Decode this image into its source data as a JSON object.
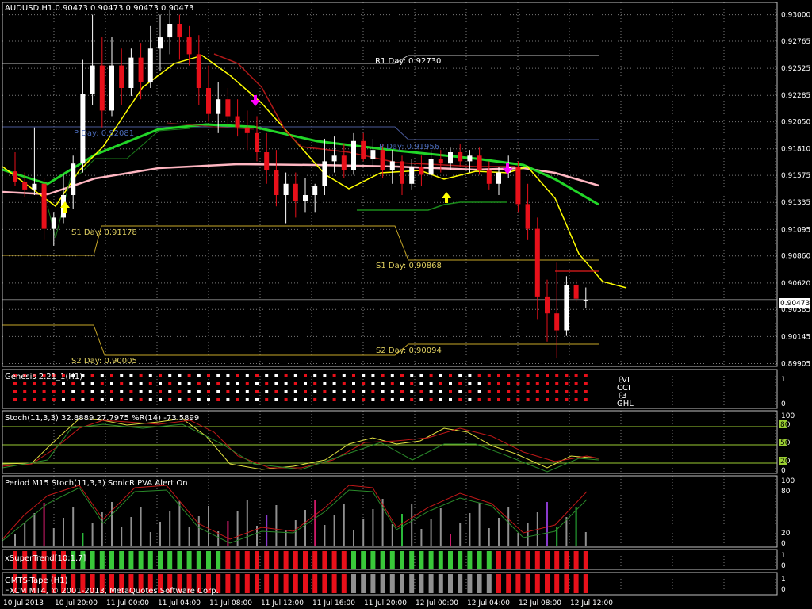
{
  "header": {
    "title": "AUDUSD,H1  0.90473 0.90473 0.90473 0.90473",
    "current_price": "0.90473"
  },
  "chart_data": {
    "type": "candlestick",
    "symbol": "AUDUSD",
    "timeframe": "H1",
    "price_axis": [
      "0.93000",
      "0.92765",
      "0.92525",
      "0.92285",
      "0.92050",
      "0.91810",
      "0.91575",
      "0.91335",
      "0.91095",
      "0.90860",
      "0.90620",
      "0.90385",
      "0.90145",
      "0.89905"
    ],
    "ylim": [
      0.8988,
      0.9311
    ],
    "time_axis": [
      "10 Jul 2013",
      "10 Jul 20:00",
      "11 Jul 00:00",
      "11 Jul 04:00",
      "11 Jul 08:00",
      "11 Jul 12:00",
      "11 Jul 16:00",
      "11 Jul 20:00",
      "12 Jul 00:00",
      "12 Jul 04:00",
      "12 Jul 08:00",
      "12 Jul 12:00"
    ],
    "candles": [
      [
        0.9161,
        0.9178,
        0.9148,
        0.9152
      ],
      [
        0.9152,
        0.916,
        0.9138,
        0.9145
      ],
      [
        0.9145,
        0.92,
        0.914,
        0.915
      ],
      [
        0.915,
        0.9155,
        0.91,
        0.911
      ],
      [
        0.911,
        0.9125,
        0.9095,
        0.912
      ],
      [
        0.912,
        0.9158,
        0.9115,
        0.914
      ],
      [
        0.914,
        0.9175,
        0.9128,
        0.9168
      ],
      [
        0.9168,
        0.926,
        0.916,
        0.923
      ],
      [
        0.923,
        0.93,
        0.922,
        0.9255
      ],
      [
        0.9255,
        0.928,
        0.92,
        0.9215
      ],
      [
        0.9215,
        0.928,
        0.921,
        0.9255
      ],
      [
        0.9255,
        0.927,
        0.922,
        0.9235
      ],
      [
        0.9235,
        0.927,
        0.9228,
        0.9262
      ],
      [
        0.9262,
        0.9275,
        0.9225,
        0.924
      ],
      [
        0.924,
        0.929,
        0.9235,
        0.927
      ],
      [
        0.927,
        0.93,
        0.925,
        0.928
      ],
      [
        0.928,
        0.9305,
        0.9265,
        0.9292
      ],
      [
        0.9292,
        0.93,
        0.926,
        0.928
      ],
      [
        0.928,
        0.929,
        0.9255,
        0.9265
      ],
      [
        0.9265,
        0.9282,
        0.922,
        0.9235
      ],
      [
        0.9235,
        0.9255,
        0.9205,
        0.9212
      ],
      [
        0.9212,
        0.924,
        0.9195,
        0.9225
      ],
      [
        0.9225,
        0.9235,
        0.92,
        0.921
      ],
      [
        0.921,
        0.9225,
        0.9192,
        0.92
      ],
      [
        0.92,
        0.9215,
        0.918,
        0.9195
      ],
      [
        0.9195,
        0.921,
        0.917,
        0.9178
      ],
      [
        0.9178,
        0.9195,
        0.915,
        0.9162
      ],
      [
        0.9162,
        0.918,
        0.913,
        0.914
      ],
      [
        0.914,
        0.916,
        0.9115,
        0.915
      ],
      [
        0.915,
        0.916,
        0.912,
        0.9135
      ],
      [
        0.9135,
        0.9155,
        0.9125,
        0.914
      ],
      [
        0.914,
        0.915,
        0.9125,
        0.9148
      ],
      [
        0.9148,
        0.919,
        0.914,
        0.917
      ],
      [
        0.917,
        0.9192,
        0.916,
        0.9175
      ],
      [
        0.9175,
        0.9185,
        0.9155,
        0.9162
      ],
      [
        0.9162,
        0.9195,
        0.9158,
        0.9188
      ],
      [
        0.9188,
        0.9195,
        0.917,
        0.9172
      ],
      [
        0.9172,
        0.919,
        0.9165,
        0.918
      ],
      [
        0.918,
        0.9185,
        0.9155,
        0.9162
      ],
      [
        0.9162,
        0.918,
        0.915,
        0.917
      ],
      [
        0.917,
        0.9175,
        0.914,
        0.915
      ],
      [
        0.915,
        0.9172,
        0.9145,
        0.9165
      ],
      [
        0.9165,
        0.9175,
        0.9148,
        0.9158
      ],
      [
        0.9158,
        0.918,
        0.9155,
        0.9172
      ],
      [
        0.9172,
        0.918,
        0.916,
        0.9168
      ],
      [
        0.9168,
        0.9182,
        0.9162,
        0.9178
      ],
      [
        0.9178,
        0.9185,
        0.9165,
        0.917
      ],
      [
        0.917,
        0.918,
        0.916,
        0.9175
      ],
      [
        0.9175,
        0.9182,
        0.9158,
        0.9162
      ],
      [
        0.9162,
        0.917,
        0.9145,
        0.915
      ],
      [
        0.915,
        0.9165,
        0.914,
        0.916
      ],
      [
        0.916,
        0.9175,
        0.9155,
        0.9165
      ],
      [
        0.9165,
        0.917,
        0.9125,
        0.9132
      ],
      [
        0.9132,
        0.915,
        0.91,
        0.911
      ],
      [
        0.911,
        0.912,
        0.903,
        0.905
      ],
      [
        0.905,
        0.9065,
        0.901,
        0.9035
      ],
      [
        0.9035,
        0.908,
        0.8995,
        0.902
      ],
      [
        0.902,
        0.9068,
        0.9015,
        0.906
      ],
      [
        0.906,
        0.9065,
        0.9045,
        0.9048
      ],
      [
        0.9047,
        0.9058,
        0.904,
        0.9047
      ]
    ]
  },
  "levels": {
    "r1": "R1 Day: 0.92730",
    "pivot_left": "P Day: 0.92081",
    "pivot_right": "P Day: 0.91956",
    "s1_left": "S1 Day: 0.91178",
    "s1_right": "S1 Day: 0.90868",
    "s2_left": "S2 Day: 0.90005",
    "s2_right": "S2 Day: 0.90094"
  },
  "genesis": {
    "title": "Genesis 2.21_1(H1)",
    "rows": [
      "TVI",
      "CCI",
      "T3",
      "GHL"
    ],
    "axis": [
      "1",
      "0"
    ]
  },
  "stoch": {
    "title": "Stoch(11,3,3) 32.8889 27.7975  %R(14) -73.5899",
    "axis": [
      "100",
      "80",
      "50",
      "20",
      "0"
    ],
    "levels": [
      "80",
      "50",
      "20"
    ]
  },
  "period": {
    "title": "Period M15 Stoch(11,3,3)  SonicR PVA  Alert On",
    "axis": [
      "100",
      "80",
      "20",
      "0"
    ]
  },
  "supertrend": {
    "title": "xSuperTrend[10;1.7]",
    "axis": [
      "1",
      "0"
    ]
  },
  "gmts": {
    "title": "GMTS-Tape (H1)",
    "axis": [
      "1",
      "0"
    ]
  },
  "footer": {
    "copyright": "FXCM MT4, © 2001-2013, MetaQuotes Software Corp."
  },
  "colors": {
    "bull": "#ffffff",
    "bear": "#e8101a",
    "grid": "#7a7a7a",
    "ma_fast": "#ffff00",
    "ma_mid": "#22d628",
    "ma_slow": "#ffb6c1",
    "ma_dark": "#b01818",
    "pivot": "#4a5a9a",
    "support": "#c8a828",
    "buy_arrow": "#ffff00",
    "sell_arrow": "#ff00ff"
  }
}
